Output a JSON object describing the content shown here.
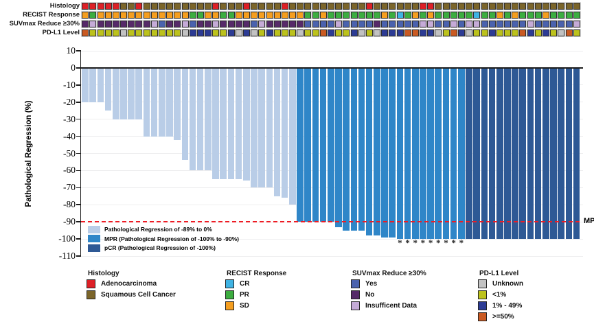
{
  "annotation_tracks": {
    "rows": [
      {
        "label": "Histology",
        "sequence": "AAAAASSASSSSSSSSSASSSASSSSASSSSSSSSSSASSSSSSAASSSSSSSSSSSSSSSSSSS",
        "key": {
          "A": "#dd2026",
          "S": "#7b652a"
        }
      },
      {
        "label": "RECIST Response",
        "sequence": "DPDDDDDDDDDDDDPPDDPPDDDDDDDDDPPDPPPPPPPDPCPDPDPPPPPCPPDPDPPPDPPPP",
        "key": {
          "C": "#3fb3e3",
          "P": "#3cad40",
          "D": "#f59e1f"
        }
      },
      {
        "label": "SUVmax Reduce ≥30%",
        "sequence": "NINNNNNNNIYNNIYNNINNNNYINNNNNYYYYIYYYYNYYYYYIIYYIYIIYYYYYYIYYYYYI",
        "key": {
          "Y": "#4a62ae",
          "N": "#562a69",
          "I": "#c5abd7"
        }
      },
      {
        "label": "PD-L1 Level",
        "sequence": "HLLLLULLLLLLLUMMMLLMUMULMLLLULLHMLLMULUMMMHHMMULHMULLMLLLHMLMLUHL",
        "key": {
          "U": "#c2c2c2",
          "L": "#bcc21c",
          "M": "#2c3b94",
          "H": "#ca5a22"
        }
      }
    ]
  },
  "chart_data": {
    "type": "bar",
    "title": "",
    "xlabel": "",
    "ylabel": "Pathological Regression (%)",
    "ylim": [
      -110,
      10
    ],
    "yticks": [
      10,
      0,
      -10,
      -20,
      -30,
      -40,
      -50,
      -60,
      -70,
      -80,
      -90,
      -100,
      -110
    ],
    "n_patients": 65,
    "values": [
      -20,
      -20,
      -20,
      -25,
      -30,
      -30,
      -30,
      -30,
      -40,
      -40,
      -40,
      -40,
      -42,
      -54,
      -60,
      -60,
      -60,
      -65,
      -65,
      -65,
      -65,
      -66,
      -70,
      -70,
      -70,
      -75,
      -76,
      -80,
      -90,
      -90,
      -90,
      -90,
      -90,
      -93,
      -95,
      -95,
      -95,
      -98,
      -98,
      -99,
      -99,
      -100,
      -100,
      -100,
      -100,
      -100,
      -100,
      -100,
      -100,
      -100,
      -100,
      -100,
      -100,
      -100,
      -100,
      -100,
      -100,
      -100,
      -100,
      -100,
      -100,
      -100,
      -100,
      -100,
      -100
    ],
    "groups": [
      {
        "id": "regression",
        "label": "Pathological Regression of -89% to 0%",
        "color": "#b9cde7",
        "count": 28
      },
      {
        "id": "mpr",
        "label": "MPR (Pathological Regression of -100% to -90%)",
        "color": "#2f86c8",
        "count": 22
      },
      {
        "id": "pcr",
        "label": "pCR (Pathological Regression of -100%)",
        "color": "#2e5995",
        "count": 15
      }
    ],
    "mpr_line": {
      "y": -90,
      "label": "MPR",
      "color": "#ed1c24"
    },
    "asterisk_bars": [
      42,
      43,
      44,
      45,
      46,
      47,
      48,
      49,
      50
    ],
    "grid": true,
    "legend_position": "bottom-left-inside"
  },
  "bottom_legend": [
    {
      "title": "Histology",
      "items": [
        {
          "label": "Adenocarcinoma",
          "color": "#dd2026"
        },
        {
          "label": "Squamous Cell Cancer",
          "color": "#7b652a"
        }
      ]
    },
    {
      "title": "RECIST Response",
      "items": [
        {
          "label": "CR",
          "color": "#3fb3e3"
        },
        {
          "label": "PR",
          "color": "#3cad40"
        },
        {
          "label": "SD",
          "color": "#f59e1f"
        }
      ]
    },
    {
      "title": "SUVmax Reduce ≥30%",
      "items": [
        {
          "label": "Yes",
          "color": "#4a62ae"
        },
        {
          "label": "No",
          "color": "#562a69"
        },
        {
          "label": "Insufficent Data",
          "color": "#c5abd7"
        }
      ]
    },
    {
      "title": "PD-L1 Level",
      "items": [
        {
          "label": "Unknown",
          "color": "#c2c2c2"
        },
        {
          "label": "<1%",
          "color": "#bcc21c"
        },
        {
          "label": "1% - 49%",
          "color": "#2c3b94"
        },
        {
          "label": ">=50%",
          "color": "#ca5a22"
        }
      ]
    }
  ]
}
